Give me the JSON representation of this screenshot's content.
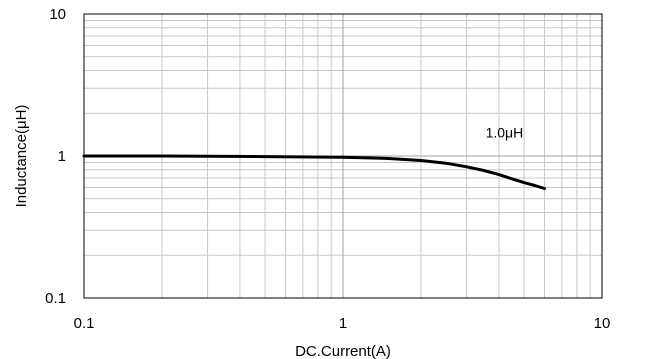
{
  "chart_data": {
    "type": "line",
    "xscale": "log",
    "yscale": "log",
    "xlim": [
      0.1,
      10
    ],
    "ylim": [
      0.1,
      10
    ],
    "grid": true,
    "xlabel": "DC.Current(A)",
    "ylabel": "Inductance(μH)",
    "xticks": [
      0.1,
      1,
      10
    ],
    "xtick_labels": [
      "0.1",
      "1",
      "10"
    ],
    "yticks": [
      0.1,
      1,
      10
    ],
    "ytick_labels": [
      "0.1",
      "1",
      "10"
    ],
    "annotations": [
      {
        "text": "1.0μH",
        "x": 4.2,
        "y": 1.35
      }
    ],
    "series": [
      {
        "name": "1.0μH",
        "color": "#000000",
        "x": [
          0.1,
          0.2,
          0.5,
          1.0,
          1.5,
          2.0,
          2.5,
          3.0,
          3.5,
          4.0,
          4.5,
          5.0,
          5.5,
          6.0
        ],
        "y": [
          1.0,
          1.0,
          0.99,
          0.98,
          0.96,
          0.93,
          0.89,
          0.84,
          0.79,
          0.74,
          0.69,
          0.65,
          0.62,
          0.59
        ]
      }
    ]
  }
}
